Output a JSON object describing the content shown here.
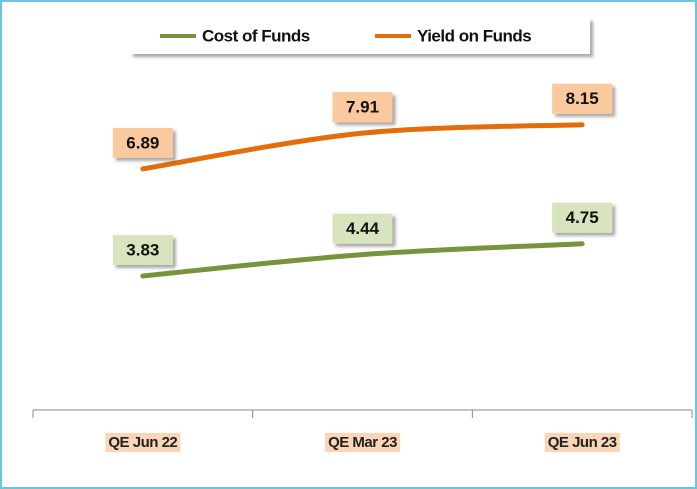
{
  "chart_data": {
    "type": "line",
    "categories": [
      "QE Jun 22",
      "QE Mar 23",
      "QE Jun 23"
    ],
    "series": [
      {
        "name": "Cost of Funds",
        "color": "#77933c",
        "label_color": "#d7e4bd",
        "values": [
          3.83,
          4.44,
          4.75
        ]
      },
      {
        "name": "Yield on Funds",
        "color": "#e46c0a",
        "label_color": "#fbc99e",
        "values": [
          6.89,
          7.91,
          8.15
        ]
      }
    ],
    "ylim": [
      0,
      10
    ],
    "legend": "top"
  }
}
